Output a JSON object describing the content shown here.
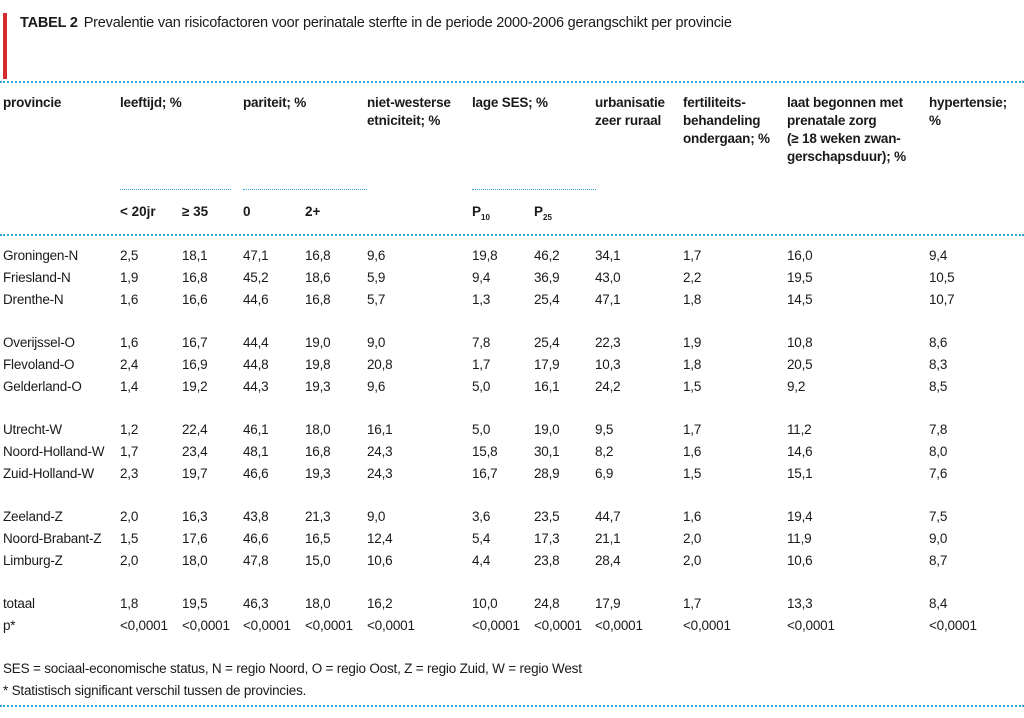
{
  "title": {
    "label": "TABEL 2",
    "text": "Prevalentie van risicofactoren voor perinatale sterfte in de periode 2000-2006 gerangschikt per provincie"
  },
  "headers": {
    "provincie": "provincie",
    "leeftijd": "leeftijd; %",
    "pariteit": "pariteit; %",
    "etniciteit": "niet-westerse\netniciteit; %",
    "ses": "lage SES; %",
    "urbanisatie": "urbanisatie\nzeer ruraal",
    "fertiliteit": "fertiliteits-\nbehandeling\nondergaan; %",
    "zorg": "laat begonnen met\nprenatale zorg\n(≥ 18 weken zwan-\ngerschapsduur); %",
    "hypertensie": "hypertensie;\n%"
  },
  "subheaders": {
    "lt20": "< 20jr",
    "ge35": "≥ 35",
    "p0": "0",
    "p2": "2+",
    "p10": "P",
    "p10_sub": "10",
    "p25": "P",
    "p25_sub": "25"
  },
  "rows": [
    [
      "Groningen-N",
      "2,5",
      "18,1",
      "47,1",
      "16,8",
      "9,6",
      "19,8",
      "46,2",
      "34,1",
      "1,7",
      "16,0",
      "9,4"
    ],
    [
      "Friesland-N",
      "1,9",
      "16,8",
      "45,2",
      "18,6",
      "5,9",
      "9,4",
      "36,9",
      "43,0",
      "2,2",
      "19,5",
      "10,5"
    ],
    [
      "Drenthe-N",
      "1,6",
      "16,6",
      "44,6",
      "16,8",
      "5,7",
      "1,3",
      "25,4",
      "47,1",
      "1,8",
      "14,5",
      "10,7"
    ],
    [
      "Overijssel-O",
      "1,6",
      "16,7",
      "44,4",
      "19,0",
      "9,0",
      "7,8",
      "25,4",
      "22,3",
      "1,9",
      "10,8",
      "8,6"
    ],
    [
      "Flevoland-O",
      "2,4",
      "16,9",
      "44,8",
      "19,8",
      "20,8",
      "1,7",
      "17,9",
      "10,3",
      "1,8",
      "20,5",
      "8,3"
    ],
    [
      "Gelderland-O",
      "1,4",
      "19,2",
      "44,3",
      "19,3",
      "9,6",
      "5,0",
      "16,1",
      "24,2",
      "1,5",
      "9,2",
      "8,5"
    ],
    [
      "Utrecht-W",
      "1,2",
      "22,4",
      "46,1",
      "18,0",
      "16,1",
      "5,0",
      "19,0",
      "9,5",
      "1,7",
      "11,2",
      "7,8"
    ],
    [
      "Noord-Holland-W",
      "1,7",
      "23,4",
      "48,1",
      "16,8",
      "24,3",
      "15,8",
      "30,1",
      "8,2",
      "1,6",
      "14,6",
      "8,0"
    ],
    [
      "Zuid-Holland-W",
      "2,3",
      "19,7",
      "46,6",
      "19,3",
      "24,3",
      "16,7",
      "28,9",
      "6,9",
      "1,5",
      "15,1",
      "7,6"
    ],
    [
      "Zeeland-Z",
      "2,0",
      "16,3",
      "43,8",
      "21,3",
      "9,0",
      "3,6",
      "23,5",
      "44,7",
      "1,6",
      "19,4",
      "7,5"
    ],
    [
      "Noord-Brabant-Z",
      "1,5",
      "17,6",
      "46,6",
      "16,5",
      "12,4",
      "5,4",
      "17,3",
      "21,1",
      "2,0",
      "11,9",
      "9,0"
    ],
    [
      "Limburg-Z",
      "2,0",
      "18,0",
      "47,8",
      "15,0",
      "10,6",
      "4,4",
      "23,8",
      "28,4",
      "2,0",
      "10,6",
      "8,7"
    ],
    [
      "totaal",
      "1,8",
      "19,5",
      "46,3",
      "18,0",
      "16,2",
      "10,0",
      "24,8",
      "17,9",
      "1,7",
      "13,3",
      "8,4"
    ],
    [
      "p*",
      "<0,0001",
      "<0,0001",
      "<0,0001",
      "<0,0001",
      "<0,0001",
      "<0,0001",
      "<0,0001",
      "<0,0001",
      "<0,0001",
      "<0,0001",
      "<0,0001"
    ]
  ],
  "notes": [
    "SES = sociaal-economische status, N = regio Noord, O = regio Oost, Z = regio Zuid, W = regio West",
    "* Statistisch significant verschil tussen de provincies."
  ],
  "colors": {
    "accent_bar": "#d42b2b",
    "rule": "#2aa6d6"
  }
}
